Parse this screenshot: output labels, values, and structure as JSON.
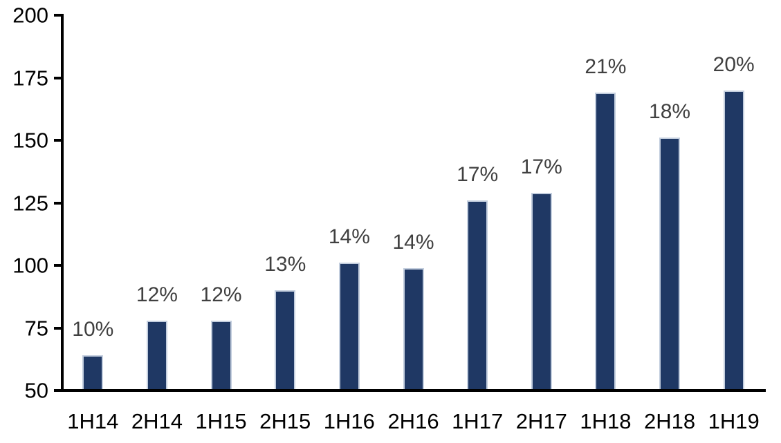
{
  "chart_data": {
    "type": "bar",
    "title": "",
    "xlabel": "",
    "ylabel": "",
    "categories": [
      "1H14",
      "2H14",
      "1H15",
      "2H15",
      "1H16",
      "2H16",
      "1H17",
      "2H17",
      "1H18",
      "2H18",
      "1H19"
    ],
    "values": [
      64,
      78,
      78,
      90,
      101,
      99,
      126,
      129,
      169,
      151,
      170
    ],
    "data_labels": [
      "10%",
      "12%",
      "12%",
      "13%",
      "14%",
      "14%",
      "17%",
      "17%",
      "21%",
      "18%",
      "20%"
    ],
    "ylim": [
      50,
      200
    ],
    "y_ticks": [
      50,
      75,
      100,
      125,
      150,
      175,
      200
    ],
    "grid": "off",
    "legend": "none",
    "colors": {
      "bar_fill": "#1f3864",
      "bar_border": "#c3cede",
      "data_label": "#404040",
      "axis": "#000000",
      "tick_label": "#000000",
      "background": "#ffffff"
    }
  }
}
